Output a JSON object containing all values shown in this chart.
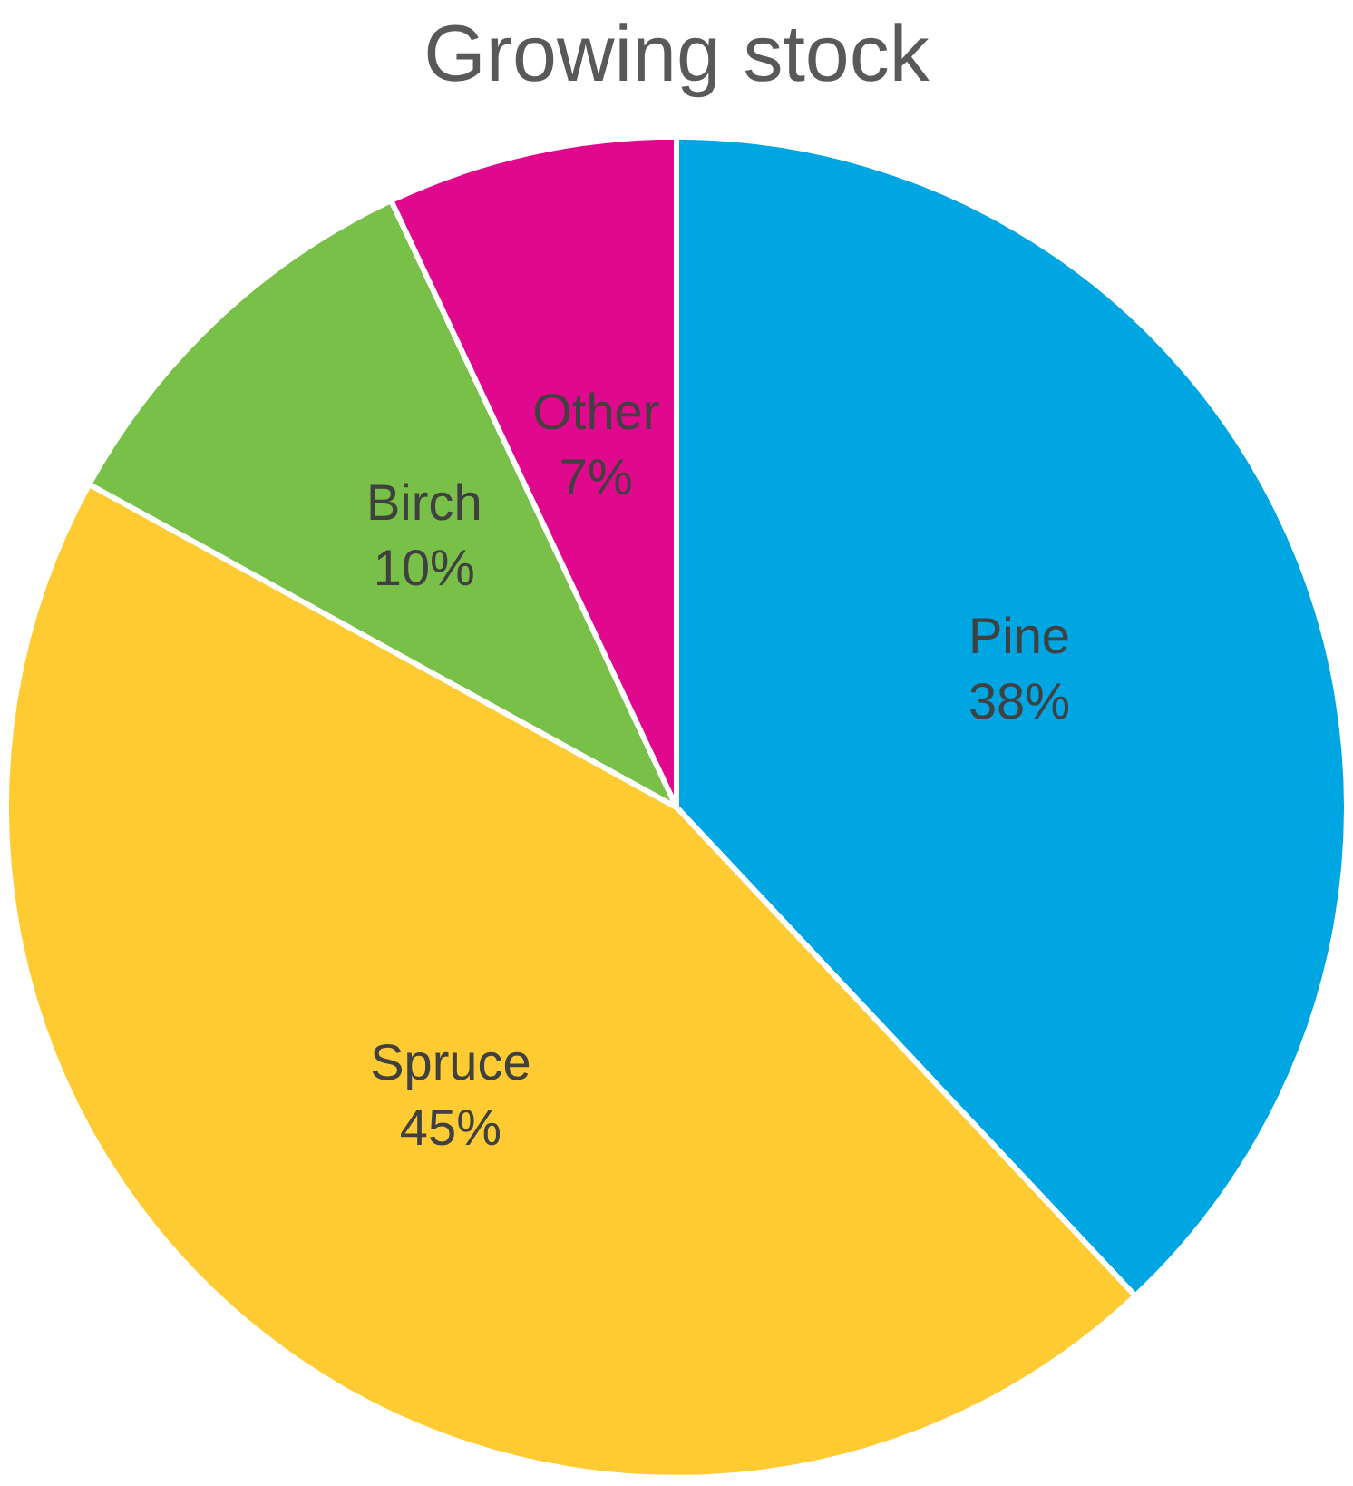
{
  "chart_data": {
    "type": "pie",
    "title": "Growing stock",
    "categories": [
      "Pine",
      "Spruce",
      "Birch",
      "Other"
    ],
    "values": [
      38,
      45,
      10,
      7
    ],
    "value_labels": [
      "38%",
      "45%",
      "10%",
      "7%"
    ],
    "colors": [
      "#00a6e2",
      "#ffcb33",
      "#78c047",
      "#e0088c"
    ],
    "legend": false
  }
}
